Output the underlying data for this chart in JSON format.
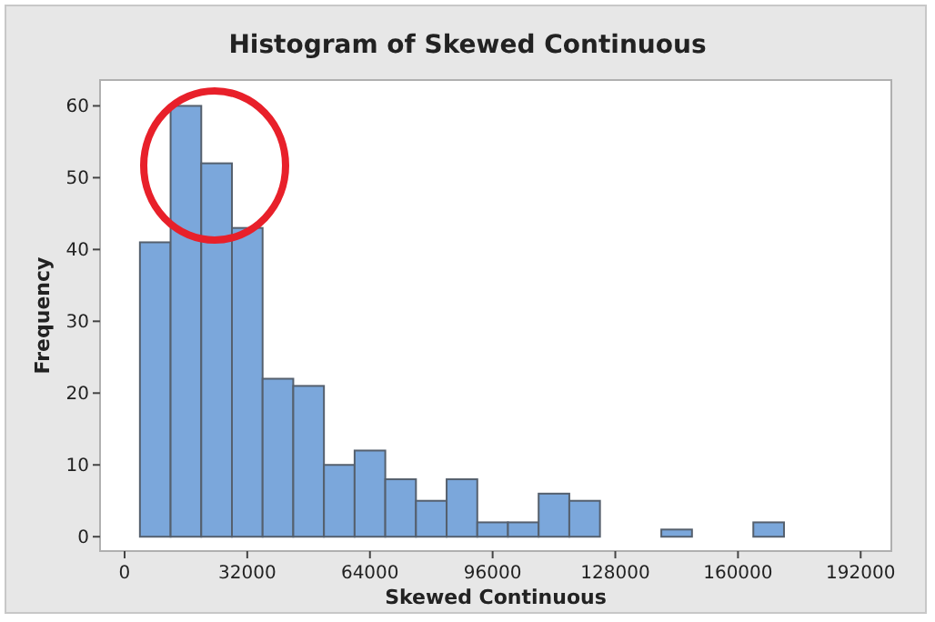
{
  "chart_data": {
    "type": "histogram",
    "title": "Histogram of Skewed Continuous",
    "xlabel": "Skewed Continuous",
    "ylabel": "Frequency",
    "bins": [
      -4000,
      4000,
      12000,
      20000,
      28000,
      36000,
      44000,
      52000,
      60000,
      68000,
      76000,
      84000,
      92000,
      100000,
      108000,
      116000,
      124000,
      132000,
      140000,
      148000,
      156000,
      164000,
      172000,
      180000,
      188000,
      196000
    ],
    "values": [
      0,
      41,
      60,
      52,
      43,
      22,
      21,
      10,
      12,
      8,
      5,
      8,
      2,
      2,
      6,
      5,
      0,
      0,
      1,
      0,
      0,
      2,
      0,
      0,
      0
    ],
    "color": "#7ba7db",
    "xlim": [
      -6400,
      200000
    ],
    "ylim": [
      -2,
      63.6
    ],
    "xticks": [
      0,
      32000,
      64000,
      96000,
      128000,
      160000,
      192000
    ],
    "yticks": [
      0,
      10,
      20,
      30,
      40,
      50,
      60
    ],
    "grid": false
  }
}
